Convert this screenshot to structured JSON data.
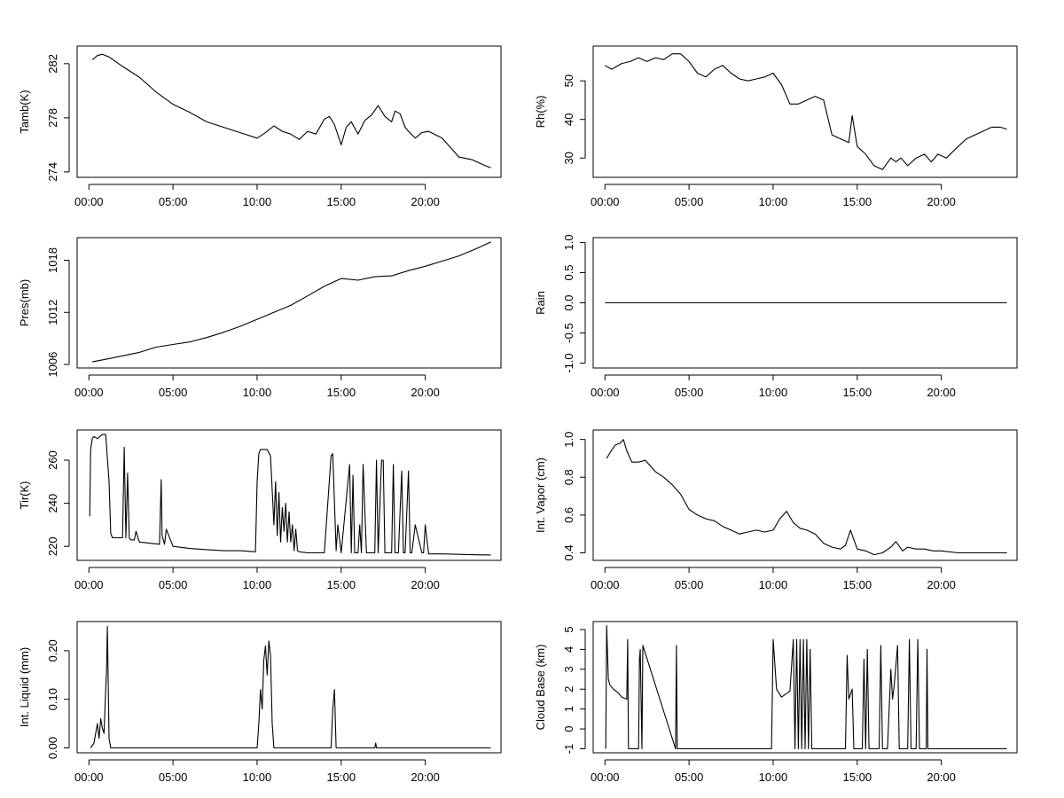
{
  "chart_data": [
    {
      "type": "line",
      "ylabel": "Tamb(K)",
      "x_ticks": [
        "00:00",
        "05:00",
        "10:00",
        "15:00",
        "20:00"
      ],
      "y_ticks": [
        "274",
        "278",
        "282"
      ],
      "xlim": [
        -0.7,
        24.5
      ],
      "ylim": [
        273.6,
        283.3
      ],
      "series": [
        {
          "x": [
            0.2,
            0.5,
            0.8,
            1.2,
            2,
            3,
            4,
            5,
            6,
            7,
            8,
            9,
            10,
            10.5,
            11,
            11.5,
            12,
            12.5,
            13,
            13.5,
            14,
            14.3,
            14.6,
            15,
            15.3,
            15.6,
            16,
            16.4,
            16.8,
            17.2,
            17.6,
            18,
            18.2,
            18.5,
            18.8,
            19,
            19.4,
            19.8,
            20.2,
            21,
            21.5,
            22,
            22.8,
            23.5,
            23.9
          ],
          "y": [
            282.3,
            282.6,
            282.7,
            282.5,
            281.8,
            281.0,
            279.9,
            279.0,
            278.4,
            277.7,
            277.3,
            276.9,
            276.5,
            276.9,
            277.4,
            277.0,
            276.8,
            276.4,
            277.0,
            276.8,
            277.9,
            278.1,
            277.5,
            276.0,
            277.3,
            277.7,
            276.8,
            277.8,
            278.2,
            278.9,
            278.1,
            277.7,
            278.5,
            278.3,
            277.3,
            277.0,
            276.5,
            276.9,
            277.0,
            276.5,
            275.8,
            275.1,
            274.9,
            274.5,
            274.3
          ]
        }
      ]
    },
    {
      "type": "line",
      "ylabel": "Rh(%)",
      "x_ticks": [
        "00:00",
        "05:00",
        "10:00",
        "15:00",
        "20:00"
      ],
      "y_ticks": [
        "30",
        "40",
        "50"
      ],
      "xlim": [
        -0.7,
        24.5
      ],
      "ylim": [
        25,
        59
      ],
      "series": [
        {
          "x": [
            0,
            0.4,
            1,
            1.5,
            2,
            2.5,
            3,
            3.5,
            4,
            4.5,
            5,
            5.5,
            6,
            6.5,
            7,
            7.5,
            8,
            8.5,
            9,
            9.5,
            10,
            10.5,
            11,
            11.5,
            12,
            12.5,
            13,
            13.5,
            14,
            14.5,
            14.7,
            15,
            15.5,
            16,
            16.5,
            17,
            17.3,
            17.6,
            18,
            18.5,
            19,
            19.4,
            19.8,
            20.3,
            21,
            21.5,
            22,
            22.5,
            23,
            23.5,
            23.9
          ],
          "y": [
            54,
            53,
            54.5,
            55,
            56,
            55,
            56,
            55.5,
            57,
            57,
            55,
            52,
            51,
            53,
            54,
            52,
            50.5,
            50,
            50.5,
            51,
            52,
            49,
            44,
            44,
            45,
            46,
            45,
            36,
            35,
            34,
            41,
            33,
            31,
            28,
            27,
            30,
            29,
            30,
            28,
            30,
            31,
            29,
            31,
            30,
            33,
            35,
            36,
            37,
            38,
            38,
            37.5
          ]
        }
      ]
    },
    {
      "type": "line",
      "ylabel": "Pres(mb)",
      "x_ticks": [
        "00:00",
        "05:00",
        "10:00",
        "15:00",
        "20:00"
      ],
      "y_ticks": [
        "1006",
        "1012",
        "1018"
      ],
      "xlim": [
        -0.7,
        24.5
      ],
      "ylim": [
        1005.6,
        1020.6
      ],
      "series": [
        {
          "x": [
            0.2,
            1,
            2,
            3,
            4,
            5,
            6,
            7,
            8,
            9,
            10,
            11,
            12,
            13,
            14,
            15,
            16,
            17,
            18,
            19,
            20,
            21,
            22,
            23,
            23.9
          ],
          "y": [
            1006.3,
            1006.6,
            1007.0,
            1007.4,
            1008.0,
            1008.3,
            1008.6,
            1009.1,
            1009.7,
            1010.4,
            1011.2,
            1012.0,
            1012.8,
            1013.9,
            1015.0,
            1015.9,
            1015.7,
            1016.1,
            1016.2,
            1016.8,
            1017.3,
            1017.9,
            1018.5,
            1019.3,
            1020.1
          ]
        }
      ]
    },
    {
      "type": "line",
      "ylabel": "Rain",
      "x_ticks": [
        "00:00",
        "05:00",
        "10:00",
        "15:00",
        "20:00"
      ],
      "y_ticks": [
        "-1.0",
        "-0.5",
        "0.0",
        "0.5",
        "1.0"
      ],
      "xlim": [
        -0.7,
        24.5
      ],
      "ylim": [
        -1.08,
        1.08
      ],
      "series": [
        {
          "x": [
            0,
            23.9
          ],
          "y": [
            0,
            0
          ]
        }
      ]
    },
    {
      "type": "line",
      "ylabel": "Tir(K)",
      "x_ticks": [
        "00:00",
        "05:00",
        "10:00",
        "15:00",
        "20:00"
      ],
      "y_ticks": [
        "220",
        "240",
        "260"
      ],
      "xlim": [
        -0.7,
        24.5
      ],
      "ylim": [
        213.5,
        274
      ],
      "series": [
        {
          "x": [
            0.05,
            0.1,
            0.2,
            0.3,
            0.5,
            0.8,
            1.0,
            1.2,
            1.3,
            1.4,
            1.6,
            2.0,
            2.1,
            2.2,
            2.3,
            2.4,
            2.5,
            2.7,
            2.8,
            3.0,
            4.2,
            4.3,
            4.35,
            4.5,
            4.6,
            5,
            6,
            7,
            8,
            9,
            9.9,
            10.0,
            10.1,
            10.2,
            10.4,
            10.6,
            10.8,
            11.0,
            11.1,
            11.2,
            11.3,
            11.4,
            11.5,
            11.6,
            11.7,
            11.8,
            11.9,
            12.0,
            12.1,
            12.2,
            12.3,
            12.4,
            12.5,
            13,
            14,
            14.4,
            14.5,
            14.7,
            14.8,
            15.0,
            15.5,
            15.6,
            15.7,
            15.8,
            16.0,
            16.1,
            16.2,
            16.3,
            16.5,
            17.0,
            17.1,
            17.2,
            17.4,
            17.5,
            17.6,
            18.0,
            18.1,
            18.2,
            18.4,
            18.6,
            18.7,
            18.8,
            19.0,
            19.1,
            19.2,
            19.4,
            19.8,
            19.9,
            20.0,
            20.2,
            21,
            22,
            23,
            23.9
          ],
          "y": [
            234,
            265,
            270,
            271,
            270,
            272,
            272,
            250,
            226,
            224,
            224,
            224,
            266,
            224,
            254,
            224,
            223,
            223,
            227,
            222,
            221,
            251,
            225,
            221,
            228,
            220,
            219,
            218.5,
            218,
            218,
            217.5,
            250,
            263,
            265,
            265,
            265,
            262,
            230,
            250,
            225,
            245,
            222,
            238,
            227,
            240,
            222,
            236,
            222,
            230,
            218,
            228,
            218,
            217.5,
            217,
            217,
            262,
            263,
            218,
            230,
            217,
            258,
            217,
            253,
            217,
            217,
            230,
            217,
            258,
            217,
            217,
            260,
            217,
            260,
            260,
            217,
            217,
            258,
            217,
            217,
            255,
            217,
            217,
            255,
            217,
            217,
            230,
            217,
            217,
            230,
            216.5,
            216.5,
            216.3,
            216.1,
            216
          ]
        }
      ]
    },
    {
      "type": "line",
      "ylabel": "Int. Vapor (cm)",
      "x_ticks": [
        "00:00",
        "05:00",
        "10:00",
        "15:00",
        "20:00"
      ],
      "y_ticks": [
        "0.4",
        "0.6",
        "0.8",
        "1.0"
      ],
      "xlim": [
        -0.7,
        24.5
      ],
      "ylim": [
        0.36,
        1.05
      ],
      "series": [
        {
          "x": [
            0.1,
            0.3,
            0.6,
            0.9,
            1.1,
            1.3,
            1.6,
            2,
            2.4,
            3,
            3.5,
            4,
            4.5,
            5,
            5.5,
            6,
            6.5,
            7,
            7.5,
            8,
            8.5,
            9,
            9.5,
            10,
            10.4,
            10.8,
            11.2,
            11.6,
            12,
            12.5,
            13,
            13.5,
            14,
            14.3,
            14.6,
            15,
            15.5,
            16,
            16.5,
            17,
            17.3,
            17.7,
            18,
            18.5,
            19,
            19.5,
            20,
            21,
            22,
            23,
            23.9
          ],
          "y": [
            0.9,
            0.93,
            0.97,
            0.98,
            1.0,
            0.94,
            0.88,
            0.88,
            0.89,
            0.83,
            0.8,
            0.76,
            0.71,
            0.63,
            0.6,
            0.58,
            0.57,
            0.54,
            0.52,
            0.5,
            0.51,
            0.52,
            0.51,
            0.52,
            0.58,
            0.62,
            0.56,
            0.53,
            0.52,
            0.5,
            0.45,
            0.43,
            0.42,
            0.44,
            0.52,
            0.42,
            0.41,
            0.39,
            0.4,
            0.43,
            0.46,
            0.41,
            0.43,
            0.42,
            0.42,
            0.41,
            0.41,
            0.4,
            0.4,
            0.4,
            0.4
          ]
        }
      ]
    },
    {
      "type": "line",
      "ylabel": "Int. Liquid (mm)",
      "x_ticks": [
        "00:00",
        "05:00",
        "10:00",
        "15:00",
        "20:00"
      ],
      "y_ticks": [
        "0.00",
        "0.10",
        "0.20"
      ],
      "xlim": [
        -0.7,
        24.5
      ],
      "ylim": [
        -0.01,
        0.26
      ],
      "series": [
        {
          "x": [
            0.1,
            0.3,
            0.5,
            0.6,
            0.7,
            0.8,
            0.9,
            1.0,
            1.05,
            1.1,
            1.2,
            1.3,
            10.0,
            10.1,
            10.2,
            10.3,
            10.4,
            10.5,
            10.6,
            10.7,
            10.8,
            10.9,
            11.0,
            14.4,
            14.5,
            14.6,
            14.7,
            15.5,
            17.0,
            17.05,
            17.1,
            23.9
          ],
          "y": [
            0,
            0.01,
            0.05,
            0.02,
            0.06,
            0.04,
            0.03,
            0.12,
            0.16,
            0.25,
            0.02,
            0,
            0,
            0.05,
            0.12,
            0.08,
            0.18,
            0.21,
            0.15,
            0.22,
            0.19,
            0.05,
            0,
            0,
            0.08,
            0.12,
            0,
            0,
            0,
            0.01,
            0,
            0
          ]
        }
      ]
    },
    {
      "type": "line",
      "ylabel": "Cloud Base (km)",
      "x_ticks": [
        "00:00",
        "05:00",
        "10:00",
        "15:00",
        "20:00"
      ],
      "y_ticks": [
        "-1",
        "0",
        "1",
        "2",
        "3",
        "4",
        "5"
      ],
      "xlim": [
        -0.7,
        24.5
      ],
      "ylim": [
        -1.2,
        5.4
      ],
      "series": [
        {
          "x": [
            0.05,
            0.1,
            0.2,
            0.3,
            0.5,
            0.8,
            1.0,
            1.3,
            1.35,
            1.4,
            2.0,
            2.05,
            2.1,
            2.2,
            2.25,
            4.2,
            4.25,
            4.3,
            9.9,
            10.0,
            10.2,
            10.5,
            11.0,
            11.2,
            11.3,
            11.4,
            11.5,
            11.6,
            11.7,
            11.8,
            11.9,
            12.0,
            12.1,
            12.2,
            12.3,
            14.3,
            14.4,
            14.5,
            14.7,
            14.8,
            15.3,
            15.4,
            15.5,
            15.6,
            15.7,
            15.8,
            16.3,
            16.4,
            16.5,
            16.8,
            17.0,
            17.1,
            17.2,
            17.4,
            17.5,
            18.0,
            18.1,
            18.2,
            18.5,
            18.6,
            18.7,
            19.1,
            19.15,
            19.2,
            23.9
          ],
          "y": [
            -1,
            5.2,
            2.5,
            2.2,
            2.0,
            1.8,
            1.6,
            1.5,
            4.5,
            -1,
            -1,
            3.5,
            4.0,
            -1,
            4.2,
            -1,
            4.2,
            -1,
            -1,
            4.5,
            2.0,
            1.6,
            1.9,
            4.5,
            -1,
            4.5,
            -1,
            4.5,
            -1,
            4.5,
            -1,
            4.5,
            -1,
            4.0,
            -1,
            -1,
            3.7,
            1.5,
            2.0,
            -1,
            -1,
            3.5,
            -1,
            4.0,
            -1,
            -1,
            -1,
            4.2,
            -1,
            -1,
            3.0,
            1.5,
            2.2,
            4.2,
            -1,
            -1,
            4.5,
            -1,
            -1,
            4.5,
            -1,
            -1,
            4.0,
            -1,
            -1
          ]
        }
      ]
    }
  ]
}
